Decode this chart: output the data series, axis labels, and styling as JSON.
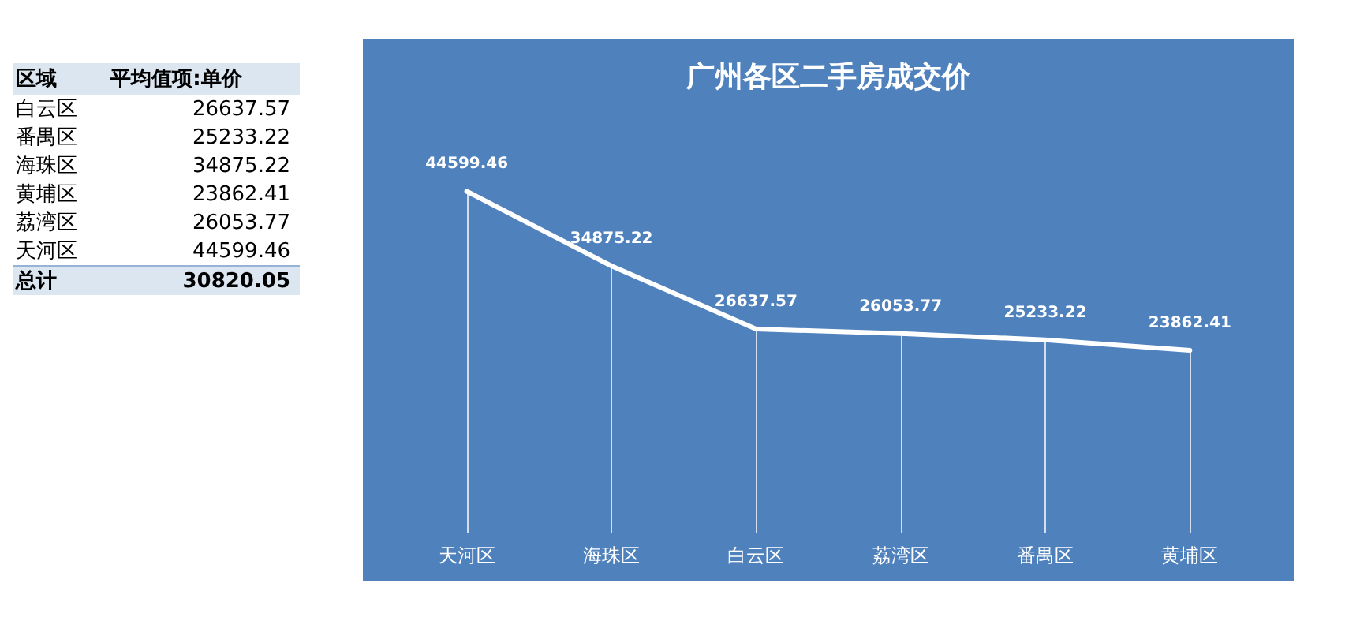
{
  "chart_data": [
    {
      "type": "other",
      "xlabel": "区域",
      "ylabel": "平均值项:单价",
      "categories": [
        "白云区",
        "番禺区",
        "海珠区",
        "黄埔区",
        "荔湾区",
        "天河区",
        "总计"
      ],
      "values": [
        26637.57,
        25233.22,
        34875.22,
        23862.41,
        26053.77,
        44599.46,
        30820.05
      ],
      "data_labels": true
    },
    {
      "type": "line",
      "title": "广州各区二手房成交价",
      "categories": [
        "天河区",
        "海珠区",
        "白云区",
        "荔湾区",
        "番禺区",
        "黄埔区"
      ],
      "series": [
        {
          "color": "#ffffff",
          "values": [
            44599.46,
            34875.22,
            26637.57,
            26053.77,
            25233.22,
            23862.41
          ]
        }
      ],
      "data_labels": true,
      "grid": "x",
      "marker": "none",
      "line_style": "solid"
    }
  ]
}
